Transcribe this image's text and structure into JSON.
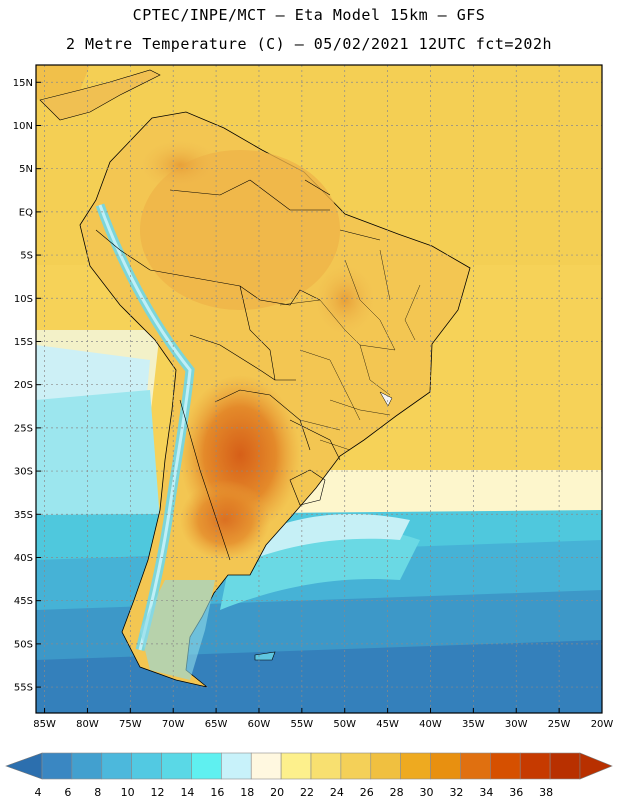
{
  "title": {
    "line1": "CPTEC/INPE/MCT –  Eta Model 15km – GFS",
    "line2": "2 Metre Temperature (C) – 05/02/2021 12UTC fct=202h"
  },
  "map": {
    "lon_range": [
      -86,
      -20
    ],
    "lat_range": [
      -58,
      17
    ],
    "lat_ticks": [
      {
        "value": 15,
        "label": "15N"
      },
      {
        "value": 10,
        "label": "10N"
      },
      {
        "value": 5,
        "label": "5N"
      },
      {
        "value": 0,
        "label": "EQ"
      },
      {
        "value": -5,
        "label": "5S"
      },
      {
        "value": -10,
        "label": "10S"
      },
      {
        "value": -15,
        "label": "15S"
      },
      {
        "value": -20,
        "label": "20S"
      },
      {
        "value": -25,
        "label": "25S"
      },
      {
        "value": -30,
        "label": "30S"
      },
      {
        "value": -35,
        "label": "35S"
      },
      {
        "value": -40,
        "label": "40S"
      },
      {
        "value": -45,
        "label": "45S"
      },
      {
        "value": -50,
        "label": "50S"
      },
      {
        "value": -55,
        "label": "55S"
      }
    ],
    "lon_ticks": [
      {
        "value": -85,
        "label": "85W"
      },
      {
        "value": -80,
        "label": "80W"
      },
      {
        "value": -75,
        "label": "75W"
      },
      {
        "value": -70,
        "label": "70W"
      },
      {
        "value": -65,
        "label": "65W"
      },
      {
        "value": -60,
        "label": "60W"
      },
      {
        "value": -55,
        "label": "55W"
      },
      {
        "value": -50,
        "label": "50W"
      },
      {
        "value": -45,
        "label": "45W"
      },
      {
        "value": -40,
        "label": "40W"
      },
      {
        "value": -35,
        "label": "35W"
      },
      {
        "value": -30,
        "label": "30W"
      },
      {
        "value": -25,
        "label": "25W"
      },
      {
        "value": -20,
        "label": "20W"
      }
    ]
  },
  "colorbar": {
    "labels": [
      "4",
      "6",
      "8",
      "10",
      "12",
      "14",
      "16",
      "18",
      "20",
      "22",
      "24",
      "26",
      "28",
      "30",
      "32",
      "34",
      "36",
      "38"
    ],
    "colors": [
      "#2c6fae",
      "#3a87c2",
      "#42a0cf",
      "#4cb8dc",
      "#52c9e2",
      "#5ad8e6",
      "#5ff0f0",
      "#c8f2fa",
      "#fff8e0",
      "#fdf08c",
      "#f8e070",
      "#f4d058",
      "#f0c040",
      "#eeaa20",
      "#e89010",
      "#e07010",
      "#d65000",
      "#c63a00",
      "#b83000"
    ]
  }
}
